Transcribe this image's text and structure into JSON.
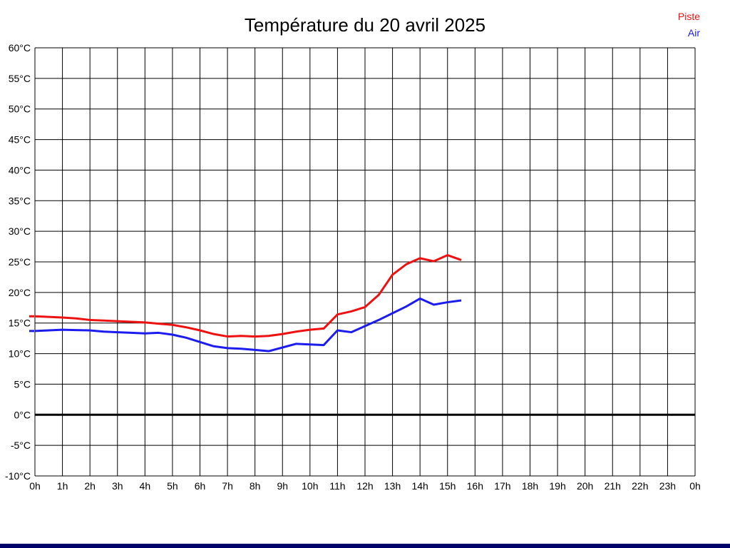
{
  "title": "Température du 20 avril 2025",
  "legend": {
    "items": [
      {
        "label": "Piste",
        "color": "#ee1111"
      },
      {
        "label": "Air",
        "color": "#1c1cee"
      }
    ]
  },
  "colors": {
    "background": "#ffffff",
    "grid": "#000000",
    "axis_border": "#000000",
    "zero_line": "#000000",
    "tick_text": "#000000",
    "bottom_bar": "#00006a"
  },
  "chart_data": {
    "type": "line",
    "title": "Température du 20 avril 2025",
    "xlabel": "",
    "ylabel": "",
    "xlim": [
      0,
      24
    ],
    "ylim": [
      -10,
      60
    ],
    "grid": true,
    "zero_line_emphasized": true,
    "legend_position": "top-right",
    "x_unit": "hours",
    "x_tick_hours": [
      0,
      1,
      2,
      3,
      4,
      5,
      6,
      7,
      8,
      9,
      10,
      11,
      12,
      13,
      14,
      15,
      16,
      17,
      18,
      19,
      20,
      21,
      22,
      23,
      24
    ],
    "x_tick_labels": [
      "0h",
      "1h",
      "2h",
      "3h",
      "4h",
      "5h",
      "6h",
      "7h",
      "8h",
      "9h",
      "10h",
      "11h",
      "12h",
      "13h",
      "14h",
      "15h",
      "16h",
      "17h",
      "18h",
      "19h",
      "20h",
      "21h",
      "22h",
      "23h",
      "0h"
    ],
    "y_ticks": [
      60,
      55,
      50,
      45,
      40,
      35,
      30,
      25,
      20,
      15,
      10,
      5,
      0,
      -5,
      -10
    ],
    "y_tick_labels": [
      "60°C",
      "55°C",
      "50°C",
      "45°C",
      "40°C",
      "35°C",
      "30°C",
      "25°C",
      "20°C",
      "15°C",
      "10°C",
      "5°C",
      "0°C",
      "-5°C",
      "-10°C"
    ],
    "sample_interval_hours": 0.5,
    "series": [
      {
        "name": "Piste",
        "color": "#ee1111",
        "x_start": 0,
        "x_step": 0.5,
        "values": [
          16.1,
          16.0,
          15.9,
          15.75,
          15.5,
          15.4,
          15.3,
          15.2,
          15.1,
          14.9,
          14.7,
          14.3,
          13.8,
          13.2,
          12.8,
          12.9,
          12.8,
          12.9,
          13.2,
          13.6,
          13.9,
          14.1,
          16.4,
          16.9,
          17.6,
          19.6,
          22.9,
          24.6,
          25.6,
          25.1,
          26.1,
          25.3
        ]
      },
      {
        "name": "Air",
        "color": "#1c1cee",
        "x_start": 0,
        "x_step": 0.5,
        "values": [
          13.7,
          13.8,
          13.9,
          13.85,
          13.8,
          13.6,
          13.5,
          13.4,
          13.3,
          13.4,
          13.1,
          12.6,
          11.9,
          11.2,
          10.9,
          10.8,
          10.6,
          10.4,
          11.0,
          11.6,
          11.5,
          11.4,
          13.8,
          13.5,
          14.5,
          15.5,
          16.6,
          17.7,
          19.0,
          18.0,
          18.4,
          18.7
        ]
      }
    ]
  }
}
